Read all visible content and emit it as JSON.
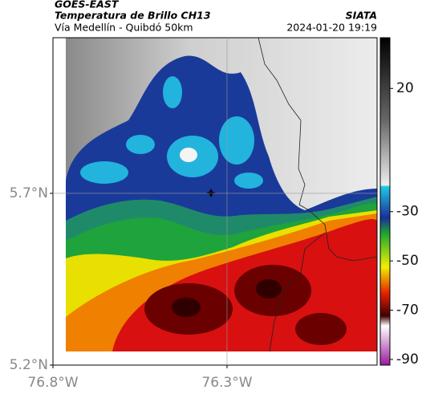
{
  "header": {
    "title": "GOES-EAST",
    "subtitle": "Temperatura de Brillo CH13",
    "location": "Vía Medellín - Quibdó 50km",
    "source": "SIATA",
    "datetime": "2024-01-20 19:19"
  },
  "map": {
    "lat_lim": [
      5.2,
      6.153
    ],
    "lon_lim": [
      -76.8,
      -75.869
    ],
    "lat_ticks": [
      {
        "value": 5.7,
        "label": "5.7°N"
      },
      {
        "value": 5.2,
        "label": "5.2°N"
      }
    ],
    "lon_ticks": [
      {
        "value": -76.8,
        "label": "76.8°W"
      },
      {
        "value": -76.3,
        "label": "76.3°W"
      }
    ]
  },
  "colorbar": {
    "ylim": [
      -92.3,
      40.6
    ],
    "yticks": [
      20,
      -30,
      -50,
      -70,
      -90
    ]
  }
}
